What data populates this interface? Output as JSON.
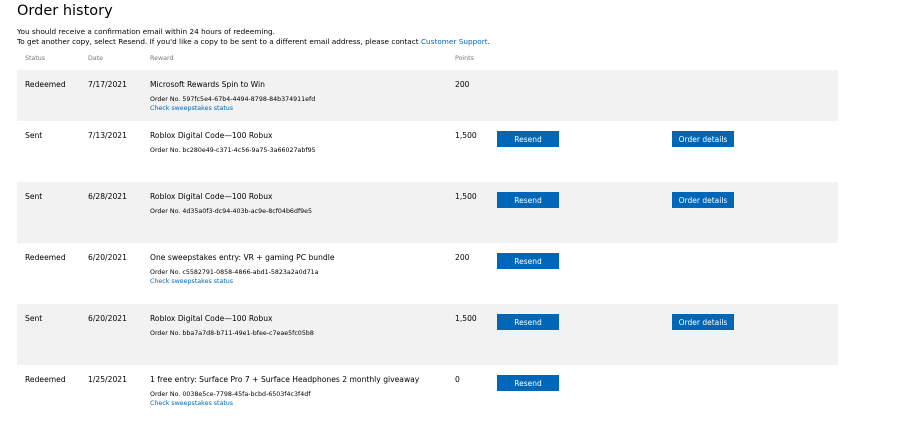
{
  "title": "Order history",
  "intro": {
    "line1": "You should receive a confirmation email within 24 hours of redeeming.",
    "line2_prefix": "To get another copy, select Resend. If you'd like a copy to be sent to a different email address, please contact ",
    "support_link": "Customer Support",
    "line2_suffix": "."
  },
  "headers": {
    "status": "Status",
    "date": "Date",
    "reward": "Reward",
    "points": "Points"
  },
  "order_prefix": "Order No. ",
  "labels": {
    "resend": "Resend",
    "order_details": "Order details",
    "check_status": "Check sweepstakes status"
  },
  "rows": [
    {
      "status": "Redeemed",
      "date": "7/17/2021",
      "reward": "Microsoft Rewards Spin to Win",
      "order": "597fc5e4-67b4-4494-8798-84b374911efd",
      "points": "200"
    },
    {
      "status": "Sent",
      "date": "7/13/2021",
      "reward": "Roblox Digital Code—100 Robux",
      "order": "bc280e49-c371-4c56-9a75-3a66027abf95",
      "points": "1,500"
    },
    {
      "status": "Sent",
      "date": "6/28/2021",
      "reward": "Roblox Digital Code—100 Robux",
      "order": "4d35a0f3-dc94-403b-ac9e-8cf04b6df9e5",
      "points": "1,500"
    },
    {
      "status": "Redeemed",
      "date": "6/20/2021",
      "reward": "One sweepstakes entry: VR + gaming PC bundle",
      "order": "c5582791-0858-4866-abd1-5823a2a0d71a",
      "points": "200"
    },
    {
      "status": "Sent",
      "date": "6/20/2021",
      "reward": "Roblox Digital Code—100 Robux",
      "order": "bba7a7d8-b711-49e1-bfee-c7eae5fc05b8",
      "points": "1,500"
    },
    {
      "status": "Redeemed",
      "date": "1/25/2021",
      "reward": "1 free entry: Surface Pro 7 + Surface Headphones 2 monthly giveaway",
      "order": "0038e5ce-7798-45fa-bcbd-6503f4c3f4df",
      "points": "0"
    }
  ]
}
